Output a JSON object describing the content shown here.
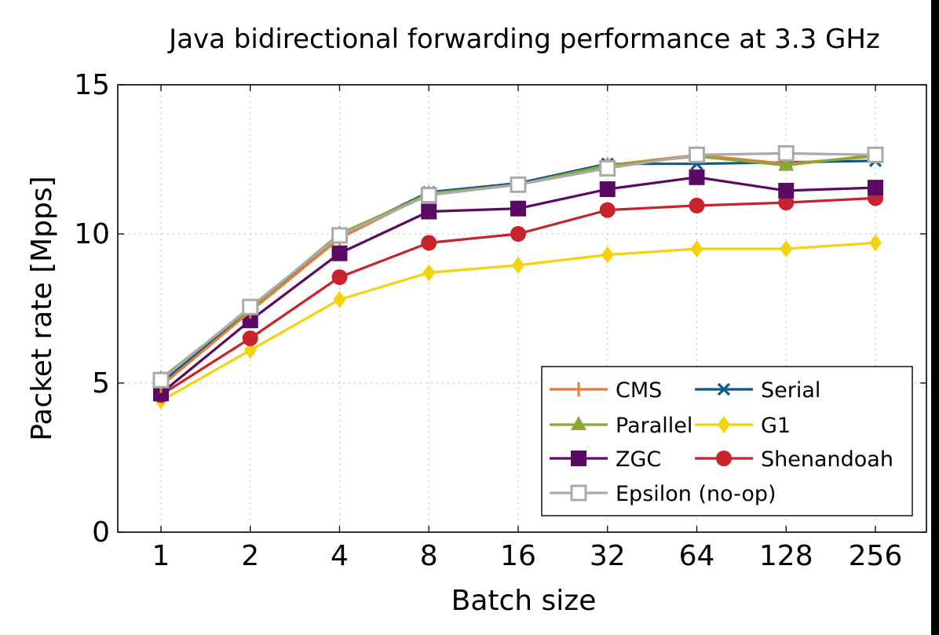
{
  "chart_data": {
    "type": "line",
    "title": "Java bidirectional forwarding performance at 3.3 GHz",
    "xlabel": "Batch size",
    "ylabel": "Packet rate [Mpps]",
    "categories": [
      "1",
      "2",
      "4",
      "8",
      "16",
      "32",
      "64",
      "128",
      "256"
    ],
    "ylim": [
      0,
      15
    ],
    "yticks": [
      "0",
      "5",
      "10",
      "15"
    ],
    "grid": true,
    "legend_position": "bottom-right",
    "series": [
      {
        "name": "CMS",
        "color": "#e87b35",
        "marker": "plus",
        "values": [
          4.9,
          7.4,
          9.85,
          11.35,
          11.65,
          12.3,
          12.65,
          12.35,
          12.6
        ]
      },
      {
        "name": "Serial",
        "color": "#0b5a8c",
        "marker": "x",
        "values": [
          5.0,
          7.5,
          9.95,
          11.4,
          11.7,
          12.35,
          12.35,
          12.4,
          12.45
        ]
      },
      {
        "name": "Parallel",
        "color": "#8aa832",
        "marker": "triangle",
        "values": [
          5.15,
          7.5,
          10.0,
          11.35,
          11.65,
          12.3,
          12.6,
          12.3,
          12.65
        ]
      },
      {
        "name": "G1",
        "color": "#f5d20b",
        "marker": "diamond",
        "values": [
          4.4,
          6.1,
          7.8,
          8.7,
          8.95,
          9.3,
          9.5,
          9.5,
          9.7
        ]
      },
      {
        "name": "ZGC",
        "color": "#5b0a63",
        "marker": "square",
        "values": [
          4.65,
          7.1,
          9.35,
          10.75,
          10.85,
          11.5,
          11.9,
          11.45,
          11.55
        ]
      },
      {
        "name": "Shenandoah",
        "color": "#c8232a",
        "marker": "circle",
        "values": [
          4.6,
          6.5,
          8.55,
          9.7,
          10.0,
          10.8,
          10.95,
          11.05,
          11.2
        ]
      },
      {
        "name": "Epsilon (no-op)",
        "color": "#aaaaaa",
        "marker": "open-square",
        "values": [
          5.1,
          7.55,
          9.95,
          11.3,
          11.65,
          12.2,
          12.65,
          12.7,
          12.65
        ]
      }
    ]
  }
}
